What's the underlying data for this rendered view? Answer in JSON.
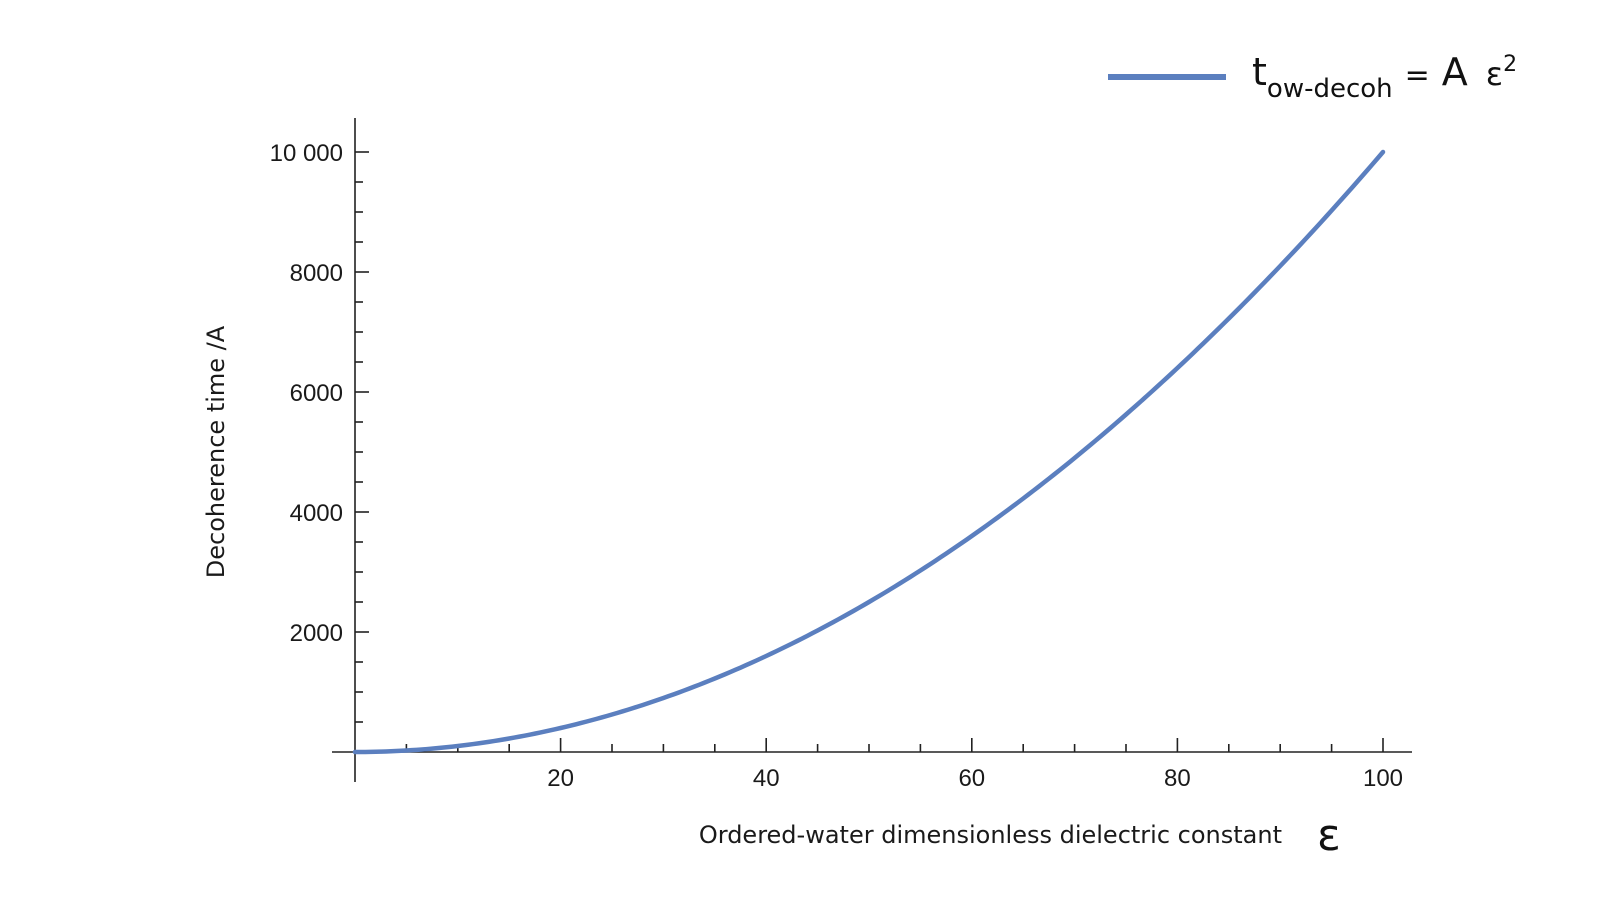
{
  "chart_data": {
    "type": "line",
    "title": "",
    "xlabel": "Ordered-water dimensionless dielectric constant",
    "xlabel_symbol": "ε",
    "ylabel": "Decoherence time /A",
    "xlim": [
      0,
      100
    ],
    "ylim": [
      0,
      10000
    ],
    "x_ticks": [
      20,
      40,
      60,
      80,
      100
    ],
    "y_ticks": [
      2000,
      4000,
      6000,
      8000,
      10000
    ],
    "x_tick_labels": [
      "20",
      "40",
      "60",
      "80",
      "100"
    ],
    "y_tick_labels": [
      "2000",
      "4000",
      "6000",
      "8000",
      "10 000"
    ],
    "series": [
      {
        "name": "t_ow-decoh = A ε²",
        "formula": "y = x^2",
        "color": "#5b7fbf",
        "x": [
          0,
          10,
          20,
          30,
          40,
          50,
          60,
          70,
          80,
          90,
          100
        ],
        "values": [
          0,
          100,
          400,
          900,
          1600,
          2500,
          3600,
          4900,
          6400,
          8100,
          10000
        ]
      }
    ],
    "legend": {
      "position": "top-right",
      "t": "t",
      "sub": "ow-decoh",
      "eq": "=",
      "A": "A",
      "eps": "ε",
      "sup": "2"
    },
    "grid": false
  }
}
